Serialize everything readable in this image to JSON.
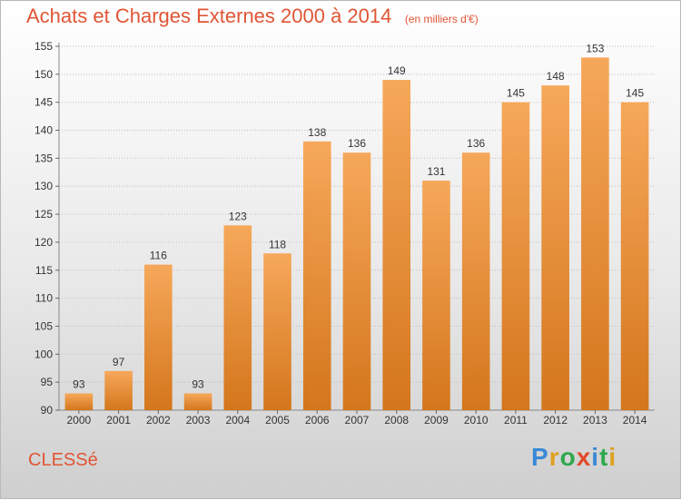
{
  "header": {
    "title": "Achats et Charges Externes 2000 à 2014",
    "subtitle": "(en milliers d'€)"
  },
  "footer": {
    "commune": "CLESSé",
    "brand_letters": [
      "P",
      "r",
      "o",
      "x",
      "i",
      "t",
      "i"
    ],
    "brand_colors": [
      "#3a8ad6",
      "#e0a020",
      "#2fa84f",
      "#e04a2a",
      "#3a8ad6",
      "#2fa84f",
      "#e0a020"
    ]
  },
  "colors": {
    "bar_top": "#f6a85a",
    "bar_bottom": "#d4761c",
    "title": "#e05535",
    "grid": "#bdbdbd"
  },
  "chart_data": {
    "type": "bar",
    "categories": [
      "2000",
      "2001",
      "2002",
      "2003",
      "2004",
      "2005",
      "2006",
      "2007",
      "2008",
      "2009",
      "2010",
      "2011",
      "2012",
      "2013",
      "2014"
    ],
    "values": [
      93,
      97,
      116,
      93,
      123,
      118,
      138,
      136,
      149,
      131,
      136,
      145,
      148,
      153,
      145
    ],
    "ylim": [
      90,
      155
    ],
    "yticks": [
      90,
      95,
      100,
      105,
      110,
      115,
      120,
      125,
      130,
      135,
      140,
      145,
      150,
      155
    ],
    "grid": true,
    "data_labels": true
  }
}
